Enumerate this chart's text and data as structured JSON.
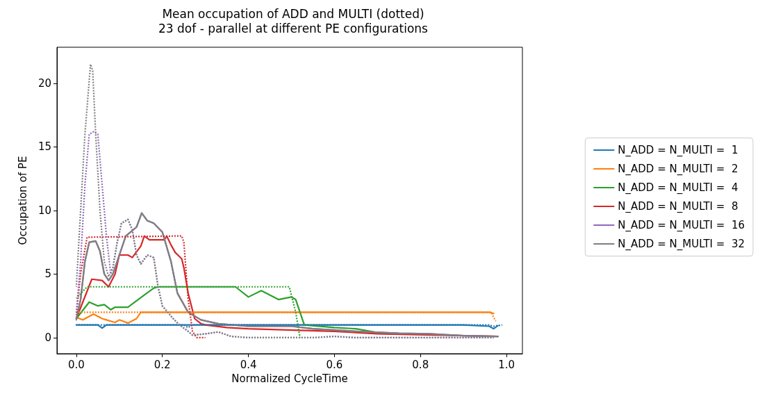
{
  "chart_data": {
    "type": "line",
    "title": "Mean occupation of ADD and MULTI (dotted)",
    "subtitle": "23 dof - parallel at different PE configurations",
    "xlabel": "Normalized CycleTime",
    "ylabel": "Occupation of PE",
    "xlim": [
      -0.045,
      1.037
    ],
    "ylim": [
      -1.26,
      22.84
    ],
    "xticks": [
      {
        "value": 0,
        "label": "0.0"
      },
      {
        "value": 0.2,
        "label": "0.2"
      },
      {
        "value": 0.4,
        "label": "0.4"
      },
      {
        "value": 0.6,
        "label": "0.6"
      },
      {
        "value": 0.8,
        "label": "0.8"
      },
      {
        "value": 1,
        "label": "1.0"
      }
    ],
    "yticks": [
      0,
      5,
      10,
      15,
      20
    ],
    "grid": false,
    "legend": "right",
    "marker": "none",
    "series": [
      {
        "name": "N_ADD = N_MULTI =  1",
        "color": "#1f77b4",
        "line_style": "solid",
        "x": [
          0,
          0.05,
          0.06,
          0.07,
          0.3,
          0.5,
          0.9,
          0.96,
          0.97,
          0.98
        ],
        "values": [
          1,
          1,
          0.75,
          1,
          1,
          1,
          1,
          0.9,
          0.7,
          0.95
        ]
      },
      {
        "name": "N_ADD = N_MULTI =  2",
        "color": "#ff7f0e",
        "line_style": "solid",
        "x": [
          0,
          0.015,
          0.04,
          0.06,
          0.07,
          0.09,
          0.1,
          0.12,
          0.14,
          0.15,
          0.96,
          0.97
        ],
        "values": [
          1.6,
          1.4,
          1.85,
          1.5,
          1.4,
          1.2,
          1.4,
          1.15,
          1.5,
          2,
          2,
          1.9
        ]
      },
      {
        "name": "N_ADD = N_MULTI =  4",
        "color": "#2ca02c",
        "line_style": "solid",
        "x": [
          0,
          0.03,
          0.05,
          0.065,
          0.08,
          0.09,
          0.12,
          0.14,
          0.16,
          0.18,
          0.19,
          0.37,
          0.4,
          0.43,
          0.47,
          0.5,
          0.51,
          0.53,
          0.6,
          0.65,
          0.7,
          0.75
        ],
        "values": [
          1.5,
          2.8,
          2.5,
          2.6,
          2.2,
          2.4,
          2.4,
          2.9,
          3.4,
          3.9,
          4,
          4,
          3.2,
          3.7,
          3,
          3.2,
          3,
          1,
          0.8,
          0.7,
          0.4,
          0.3
        ]
      },
      {
        "name": "N_ADD = N_MULTI =  8",
        "color": "#d62728",
        "line_style": "solid",
        "x": [
          0,
          0.036,
          0.06,
          0.075,
          0.09,
          0.1,
          0.12,
          0.13,
          0.15,
          0.158,
          0.17,
          0.205,
          0.21,
          0.22,
          0.23,
          0.245,
          0.25,
          0.26,
          0.275,
          0.29,
          0.3,
          0.35,
          0.4,
          0.6,
          0.7,
          0.85,
          0.98
        ],
        "values": [
          1.5,
          4.6,
          4.5,
          4,
          5,
          6.5,
          6.5,
          6.3,
          7.2,
          8,
          7.7,
          7.7,
          8,
          7.3,
          6.7,
          6.2,
          5.5,
          3.5,
          1.5,
          1.1,
          1,
          0.8,
          0.7,
          0.5,
          0.3,
          0.2,
          0.1
        ]
      },
      {
        "name": "N_ADD = N_MULTI =  16",
        "color": "#9467bd",
        "line_style": "solid",
        "x": [
          0,
          0.01,
          0.02,
          0.03,
          0.045,
          0.055,
          0.065,
          0.075,
          0.085,
          0.1,
          0.115,
          0.14,
          0.152,
          0.165,
          0.18,
          0.2,
          0.22,
          0.235,
          0.26,
          0.29,
          0.33,
          0.4,
          0.5,
          0.55,
          0.65,
          0.75,
          0.82,
          0.9,
          0.98
        ],
        "values": [
          1.5,
          3,
          6,
          7.5,
          7.6,
          6.8,
          5,
          4.5,
          5,
          6.5,
          8,
          8.7,
          9.8,
          9.2,
          9,
          8.3,
          6,
          3.5,
          2,
          1.4,
          1.1,
          0.9,
          0.9,
          0.7,
          0.5,
          0.35,
          0.3,
          0.15,
          0.1
        ]
      },
      {
        "name": "N_ADD = N_MULTI =  32",
        "color": "#7f7f7f",
        "line_style": "solid",
        "x": [
          0,
          0.01,
          0.02,
          0.03,
          0.045,
          0.055,
          0.065,
          0.075,
          0.085,
          0.1,
          0.115,
          0.14,
          0.152,
          0.165,
          0.18,
          0.2,
          0.22,
          0.235,
          0.26,
          0.29,
          0.33,
          0.4,
          0.5,
          0.55,
          0.65,
          0.75,
          0.82,
          0.9,
          0.98
        ],
        "values": [
          1.4,
          3,
          6,
          7.5,
          7.6,
          6.8,
          5,
          4.5,
          5,
          6.5,
          8,
          8.7,
          9.8,
          9.2,
          9,
          8.3,
          6,
          3.5,
          2,
          1.4,
          1.1,
          0.9,
          0.9,
          0.7,
          0.5,
          0.35,
          0.3,
          0.15,
          0.1
        ]
      },
      {
        "color": "#1f77b4",
        "line_style": "dotted",
        "x": [
          0,
          0.25,
          0.26,
          0.27,
          0.5,
          0.96,
          0.97,
          0.99
        ],
        "values": [
          1,
          1,
          0.8,
          1,
          1,
          1,
          0.9,
          1
        ]
      },
      {
        "color": "#ff7f0e",
        "line_style": "dotted",
        "x": [
          0,
          0.965,
          0.97,
          0.975
        ],
        "values": [
          2,
          2,
          1.6,
          1.3
        ]
      },
      {
        "color": "#2ca02c",
        "line_style": "dotted",
        "x": [
          0,
          0.025,
          0.495,
          0.51,
          0.52
        ],
        "values": [
          3.1,
          4,
          4,
          2,
          0
        ]
      },
      {
        "color": "#d62728",
        "line_style": "dotted",
        "x": [
          0,
          0.01,
          0.025,
          0.245,
          0.25,
          0.26,
          0.27,
          0.28,
          0.3
        ],
        "values": [
          1.8,
          5,
          7.9,
          8,
          7.5,
          3,
          0.5,
          0,
          0
        ]
      },
      {
        "color": "#9467bd",
        "line_style": "dotted",
        "x": [
          0,
          0.01,
          0.02,
          0.03,
          0.04,
          0.05,
          0.06,
          0.07,
          0.08,
          0.085,
          0.095,
          0.105,
          0.12,
          0.13,
          0.14,
          0.15,
          0.165,
          0.18,
          0.19,
          0.2,
          0.225,
          0.24,
          0.26,
          0.27,
          0.3,
          0.33,
          0.36,
          0.4,
          0.55,
          0.6,
          0.65,
          0.97
        ],
        "values": [
          2,
          6,
          12,
          16,
          16.2,
          16,
          12,
          8,
          5,
          5.5,
          7.5,
          9,
          9.3,
          8.5,
          6.5,
          5.8,
          6.5,
          6.3,
          4,
          2.5,
          1.5,
          1,
          0.5,
          0.2,
          0.3,
          0.45,
          0.1,
          0,
          0,
          0.1,
          0,
          0
        ]
      },
      {
        "color": "#7f7f7f",
        "line_style": "dotted",
        "x": [
          0,
          0.01,
          0.02,
          0.033,
          0.038,
          0.045,
          0.055,
          0.065,
          0.075,
          0.085,
          0.095,
          0.105,
          0.12,
          0.13,
          0.14,
          0.15,
          0.165,
          0.18,
          0.19,
          0.2,
          0.225,
          0.24,
          0.26,
          0.27,
          0.3,
          0.33,
          0.36,
          0.4,
          0.55,
          0.6,
          0.65,
          0.97
        ],
        "values": [
          4,
          10,
          16,
          21.5,
          21,
          16,
          10,
          6,
          4.8,
          5.5,
          7.5,
          9,
          9.3,
          8.5,
          6.5,
          5.8,
          6.5,
          6.3,
          4,
          2.5,
          1.5,
          1,
          0.5,
          0.2,
          0.3,
          0.45,
          0.1,
          0,
          0,
          0.1,
          0,
          0
        ]
      }
    ]
  }
}
